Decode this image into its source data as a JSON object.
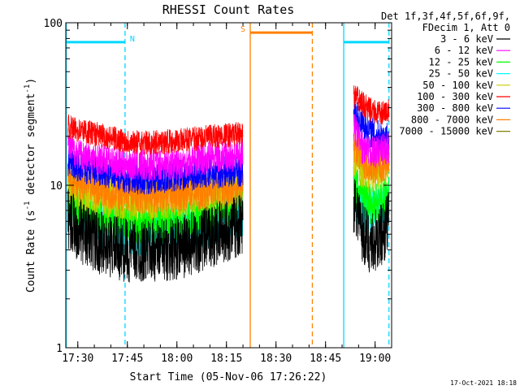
{
  "chart_data": {
    "type": "line",
    "title": "RHESSI Count Rates",
    "xlabel": "Start Time (05-Nov-06 17:26:22)",
    "ylabel_main": "Count Rate (s",
    "ylabel_sup1": "-1",
    "ylabel_mid": " detector segment",
    "ylabel_sup2": "-1",
    "ylabel_end": ")",
    "yscale": "log",
    "ylim": [
      1,
      100
    ],
    "y_ticks": [
      {
        "value": 1,
        "label": "1"
      },
      {
        "value": 10,
        "label": "10"
      },
      {
        "value": 100,
        "label": "100"
      }
    ],
    "xlim_minutes": [
      26.37,
      125
    ],
    "x_ticks": [
      {
        "minute": 30,
        "label": "17:30"
      },
      {
        "minute": 45,
        "label": "17:45"
      },
      {
        "minute": 60,
        "label": "18:00"
      },
      {
        "minute": 75,
        "label": "18:15"
      },
      {
        "minute": 90,
        "label": "18:30"
      },
      {
        "minute": 105,
        "label": "18:45"
      },
      {
        "minute": 120,
        "label": "19:00"
      }
    ],
    "legend_header": [
      "Det 1f,3f,4f,5f,6f,9f,",
      "FDecim 1, Att 0"
    ],
    "legend_position": "right",
    "data_gap_minutes": [
      80,
      113.5
    ],
    "series": [
      {
        "name": "3 - 6 keV",
        "color": "#000000",
        "x": [
          27,
          29,
          32,
          36,
          40,
          44,
          48,
          52,
          56,
          60,
          64,
          68,
          72,
          76,
          79.5,
          114,
          116,
          118,
          120,
          122,
          124
        ],
        "y": [
          6.5,
          5.6,
          5,
          4.5,
          4.2,
          4.0,
          3.9,
          4.0,
          4.0,
          4.1,
          4.3,
          4.6,
          5.0,
          5.4,
          5.7,
          8.0,
          5.2,
          4.5,
          4.5,
          5.0,
          5.8
        ]
      },
      {
        "name": "6 - 12 keV",
        "color": "#ff00ff",
        "x": [
          27,
          29,
          32,
          36,
          40,
          44,
          48,
          52,
          56,
          60,
          64,
          68,
          72,
          76,
          79.5,
          114,
          116,
          118,
          120,
          122,
          124
        ],
        "y": [
          17.5,
          16,
          15,
          14.5,
          14,
          13.5,
          13.3,
          13.3,
          13.5,
          13.5,
          14,
          14.5,
          15,
          15,
          15.5,
          22,
          17,
          16,
          16,
          16.5,
          17
        ]
      },
      {
        "name": "12 - 25 keV",
        "color": "#00ff00",
        "x": [
          27,
          29,
          32,
          36,
          40,
          44,
          48,
          52,
          56,
          60,
          64,
          68,
          72,
          76,
          79.5,
          114,
          116,
          118,
          120,
          122,
          124
        ],
        "y": [
          8.5,
          7.8,
          7.2,
          6.6,
          6.2,
          6.0,
          5.9,
          5.9,
          6.0,
          6.1,
          6.3,
          6.6,
          7.0,
          7.4,
          7.8,
          10,
          8.2,
          7.8,
          7.8,
          8.3,
          9.0
        ]
      },
      {
        "name": "25 - 50 keV",
        "color": "#00ffff",
        "x": [
          27,
          29,
          32,
          36,
          40,
          44,
          48,
          52,
          56,
          60,
          64,
          68,
          72,
          76,
          79.5,
          114,
          116,
          118,
          120,
          122,
          124
        ],
        "y": [
          7.5,
          7.0,
          6.4,
          5.9,
          5.5,
          5.3,
          5.2,
          5.2,
          5.3,
          5.4,
          5.6,
          5.8,
          6.2,
          6.6,
          6.9,
          8.5,
          7.3,
          7.0,
          7.0,
          7.3,
          7.8
        ]
      },
      {
        "name": "50 - 100 keV",
        "color": "#cccc00",
        "x": [
          27,
          29,
          32,
          36,
          40,
          44,
          48,
          52,
          56,
          60,
          64,
          68,
          72,
          76,
          79.5,
          114,
          116,
          118,
          120,
          122,
          124
        ],
        "y": [
          10.5,
          9.8,
          9.2,
          8.7,
          8.4,
          8.2,
          8.1,
          8.2,
          8.3,
          8.5,
          8.8,
          9.0,
          9.3,
          9.6,
          9.8,
          14.5,
          12.8,
          12.2,
          12.2,
          12.8,
          13.6
        ]
      },
      {
        "name": "100 - 300 keV",
        "color": "#ff0000",
        "x": [
          27,
          29,
          32,
          36,
          40,
          44,
          48,
          52,
          56,
          60,
          64,
          68,
          72,
          76,
          79.5,
          114,
          116,
          118,
          120,
          122,
          124
        ],
        "y": [
          23,
          22,
          21.5,
          20.5,
          19.5,
          18.8,
          18.3,
          18.2,
          18.5,
          18.8,
          19.2,
          19.6,
          20,
          20.4,
          20.6,
          35,
          32,
          29.5,
          28,
          27.5,
          28.5
        ]
      },
      {
        "name": "300 - 800 keV",
        "color": "#0000ff",
        "x": [
          27,
          29,
          32,
          36,
          40,
          44,
          48,
          52,
          56,
          60,
          64,
          68,
          72,
          76,
          79.5,
          114,
          116,
          118,
          120,
          122,
          124
        ],
        "y": [
          14,
          13.3,
          12.7,
          12.1,
          11.6,
          11.2,
          11.0,
          11.0,
          11.2,
          11.4,
          11.6,
          11.8,
          12,
          12.2,
          12.2,
          27,
          24,
          22,
          20.5,
          19.8,
          20
        ]
      },
      {
        "name": "800 - 7000 keV",
        "color": "#ff8000",
        "x": [
          27,
          29,
          32,
          36,
          40,
          44,
          48,
          52,
          56,
          60,
          64,
          68,
          72,
          76,
          79.5,
          114,
          116,
          118,
          120,
          122,
          124
        ],
        "y": [
          11.5,
          10.8,
          10.2,
          9.6,
          9.1,
          8.8,
          8.6,
          8.5,
          8.6,
          8.8,
          9.0,
          9.2,
          9.4,
          9.5,
          9.5,
          17,
          14.5,
          13.5,
          13.0,
          13.2,
          13.8
        ]
      },
      {
        "name": "7000 - 15000 keV",
        "color": "#808000",
        "x": [],
        "y": []
      }
    ],
    "annotations": [
      {
        "label": "N",
        "color": "#00d8ff",
        "bars": [
          [
            26.5,
            44.3
          ],
          [
            110.5,
            124.2
          ]
        ],
        "bar_value": 76,
        "lines": [
          {
            "minute": 26.5,
            "style": "solid"
          },
          {
            "minute": 44.3,
            "style": "dashed"
          },
          {
            "minute": 110.5,
            "style": "solid"
          },
          {
            "minute": 124.2,
            "style": "dashed"
          }
        ]
      },
      {
        "label": "S",
        "color": "#ff8000",
        "bars": [
          [
            82.2,
            101
          ]
        ],
        "bar_value": 87,
        "lines": [
          {
            "minute": 82.2,
            "style": "solid"
          },
          {
            "minute": 101,
            "style": "dashed"
          }
        ]
      }
    ]
  },
  "footer": {
    "timestamp": "17-Oct-2021 18:18"
  }
}
